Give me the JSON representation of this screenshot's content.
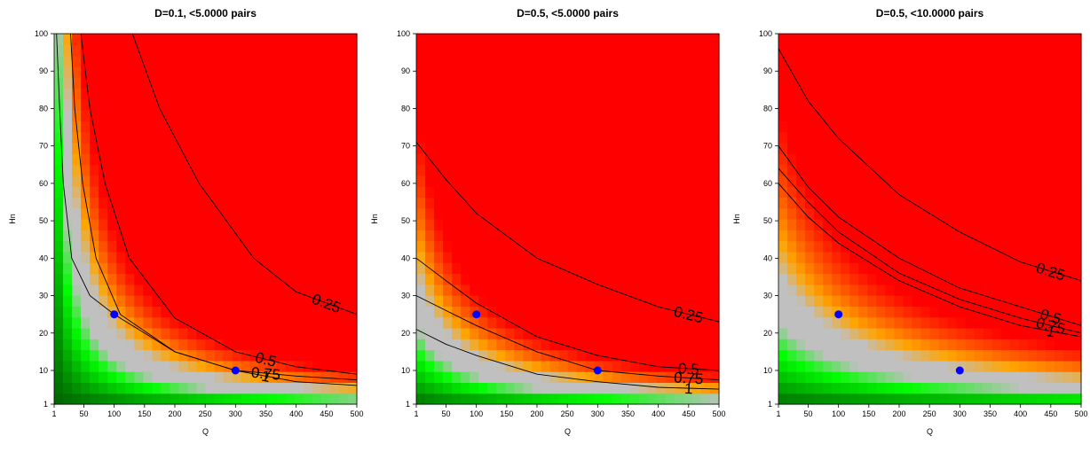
{
  "chart_data": [
    {
      "type": "heatmap",
      "title": "D=0.1, <5.0000 pairs",
      "xlabel": "Q",
      "ylabel": "Hn",
      "xlim": [
        1,
        500
      ],
      "ylim": [
        1,
        100
      ],
      "xticks": [
        "1",
        "50",
        "100",
        "150",
        "200",
        "250",
        "300",
        "350",
        "400",
        "450",
        "500"
      ],
      "yticks": [
        "1",
        "10",
        "20",
        "30",
        "40",
        "50",
        "60",
        "70",
        "80",
        "90",
        "100"
      ],
      "contours": [
        {
          "level": "0.25",
          "label": "0.25",
          "xy": [
            [
              130,
              100
            ],
            [
              175,
              80
            ],
            [
              240,
              60
            ],
            [
              330,
              40
            ],
            [
              400,
              31
            ],
            [
              500,
              25
            ]
          ]
        },
        {
          "level": "0.5",
          "label": "0.5",
          "xy": [
            [
              45,
              100
            ],
            [
              60,
              80
            ],
            [
              85,
              60
            ],
            [
              125,
              40
            ],
            [
              200,
              24
            ],
            [
              300,
              15
            ],
            [
              400,
              11
            ],
            [
              500,
              9
            ]
          ]
        },
        {
          "level": "0.75",
          "label": "0.75",
          "xy": [
            [
              28,
              100
            ],
            [
              35,
              80
            ],
            [
              48,
              60
            ],
            [
              70,
              40
            ],
            [
              110,
              25
            ],
            [
              200,
              15
            ],
            [
              300,
              10
            ],
            [
              400,
              8.5
            ],
            [
              500,
              7.5
            ]
          ]
        },
        {
          "level": "1",
          "label": "1",
          "xy": [
            [
              5,
              100
            ],
            [
              10,
              80
            ],
            [
              16,
              60
            ],
            [
              30,
              40
            ],
            [
              60,
              30
            ],
            [
              100,
              25
            ],
            [
              200,
              15
            ],
            [
              300,
              10
            ],
            [
              400,
              7
            ],
            [
              500,
              6
            ]
          ]
        }
      ],
      "points": [
        {
          "x": 100,
          "y": 25
        },
        {
          "x": 300,
          "y": 10
        }
      ],
      "point_color": "#0000ff",
      "color_scale": {
        "low": "#ff0000",
        "mid": "#c0c0c0",
        "high": "#006400",
        "bright_green": "#00ff00"
      },
      "field": {
        "scale": 3000,
        "low_q": 5
      }
    },
    {
      "type": "heatmap",
      "title": "D=0.5, <5.0000 pairs",
      "xlabel": "Q",
      "ylabel": "Hn",
      "xlim": [
        1,
        500
      ],
      "ylim": [
        1,
        100
      ],
      "xticks": [
        "1",
        "50",
        "100",
        "150",
        "200",
        "250",
        "300",
        "350",
        "400",
        "450",
        "500"
      ],
      "yticks": [
        "1",
        "10",
        "20",
        "30",
        "40",
        "50",
        "60",
        "70",
        "80",
        "90",
        "100"
      ],
      "contours": [
        {
          "level": "0.25",
          "label": "0.25",
          "xy": [
            [
              1,
              71
            ],
            [
              50,
              61
            ],
            [
              100,
              52
            ],
            [
              200,
              40
            ],
            [
              300,
              33
            ],
            [
              400,
              27
            ],
            [
              500,
              23
            ]
          ]
        },
        {
          "level": "0.5",
          "label": "0.5",
          "xy": [
            [
              1,
              40
            ],
            [
              50,
              34
            ],
            [
              100,
              28
            ],
            [
              200,
              19
            ],
            [
              300,
              14
            ],
            [
              400,
              11
            ],
            [
              500,
              10
            ]
          ]
        },
        {
          "level": "0.75",
          "label": "0.75",
          "xy": [
            [
              1,
              30
            ],
            [
              50,
              26
            ],
            [
              100,
              22
            ],
            [
              200,
              15
            ],
            [
              300,
              10
            ],
            [
              400,
              8.5
            ],
            [
              500,
              7.5
            ]
          ]
        },
        {
          "level": "1",
          "label": "1",
          "xy": [
            [
              1,
              21
            ],
            [
              50,
              17
            ],
            [
              100,
              14
            ],
            [
              200,
              9
            ],
            [
              300,
              7
            ],
            [
              400,
              5.5
            ],
            [
              500,
              5
            ]
          ]
        }
      ],
      "points": [
        {
          "x": 100,
          "y": 25
        },
        {
          "x": 300,
          "y": 10
        }
      ],
      "point_color": "#0000ff",
      "color_scale": {
        "low": "#ff0000",
        "mid": "#c0c0c0",
        "high": "#006400",
        "bright_green": "#00ff00"
      },
      "field": {
        "scale": 3000,
        "low_q": 60
      }
    },
    {
      "type": "heatmap",
      "title": "D=0.5, <10.0000 pairs",
      "xlabel": "Q",
      "ylabel": "Hn",
      "xlim": [
        1,
        500
      ],
      "ylim": [
        1,
        100
      ],
      "xticks": [
        "1",
        "50",
        "100",
        "150",
        "200",
        "250",
        "300",
        "350",
        "400",
        "450",
        "500"
      ],
      "yticks": [
        "1",
        "10",
        "20",
        "30",
        "40",
        "50",
        "60",
        "70",
        "80",
        "90",
        "100"
      ],
      "contours": [
        {
          "level": "0.25",
          "label": "0.25",
          "xy": [
            [
              1,
              96
            ],
            [
              50,
              82
            ],
            [
              100,
              72
            ],
            [
              200,
              57
            ],
            [
              300,
              47
            ],
            [
              400,
              39
            ],
            [
              500,
              34
            ]
          ]
        },
        {
          "level": "0.5",
          "label": "0.5",
          "xy": [
            [
              1,
              70
            ],
            [
              50,
              59
            ],
            [
              100,
              51
            ],
            [
              200,
              40
            ],
            [
              300,
              32
            ],
            [
              400,
              27
            ],
            [
              500,
              22
            ]
          ]
        },
        {
          "level": "0.75",
          "label": "0.75",
          "xy": [
            [
              1,
              64
            ],
            [
              50,
              55
            ],
            [
              100,
              47
            ],
            [
              200,
              36
            ],
            [
              300,
              29
            ],
            [
              400,
              24
            ],
            [
              500,
              20
            ]
          ]
        },
        {
          "level": "1",
          "label": "1",
          "xy": [
            [
              1,
              60
            ],
            [
              50,
              51
            ],
            [
              100,
              44
            ],
            [
              200,
              34
            ],
            [
              300,
              27
            ],
            [
              400,
              22
            ],
            [
              500,
              19
            ]
          ]
        }
      ],
      "points": [
        {
          "x": 100,
          "y": 25
        },
        {
          "x": 300,
          "y": 10
        }
      ],
      "point_color": "#0000ff",
      "color_scale": {
        "low": "#ff0000",
        "mid": "#c0c0c0",
        "high": "#006400",
        "bright_green": "#00ff00"
      },
      "field": {
        "scale": 6000,
        "low_q": 120
      }
    }
  ]
}
